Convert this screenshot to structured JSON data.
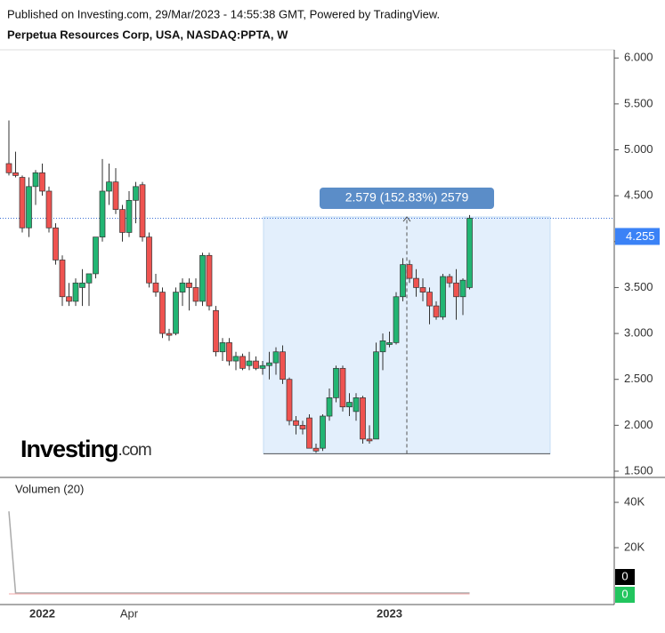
{
  "header": {
    "published": "Published on Investing.com, 29/Mar/2023 - 14:55:38 GMT, Powered by TradingView.",
    "symbol": "Perpetua Resources Corp, USA, NASDAQ:PPTA, W"
  },
  "logo": {
    "main": "Investing",
    "suffix": ".com"
  },
  "chart_data": [
    {
      "type": "candlestick",
      "categories": [
        null,
        null,
        null,
        null,
        null,
        "2022",
        null,
        null,
        null,
        null,
        null,
        null,
        null,
        null,
        null,
        null,
        null,
        null,
        "Apr",
        null,
        null,
        null,
        null,
        null,
        null,
        null,
        null,
        null,
        null,
        null,
        null,
        null,
        null,
        null,
        null,
        null,
        null,
        null,
        null,
        null,
        null,
        null,
        null,
        null,
        null,
        null,
        null,
        null,
        null,
        null,
        null,
        null,
        null,
        null,
        null,
        null,
        null,
        "2023",
        null,
        null,
        null,
        null,
        null,
        null,
        null,
        null,
        null,
        null,
        null,
        null
      ],
      "open": [
        4.85,
        4.75,
        4.7,
        4.15,
        4.6,
        4.75,
        4.55,
        4.15,
        3.8,
        3.4,
        3.35,
        3.5,
        3.55,
        3.65,
        4.05,
        4.55,
        4.65,
        4.35,
        4.1,
        4.45,
        4.62,
        4.05,
        3.55,
        3.45,
        3.0,
        3.0,
        3.45,
        3.55,
        3.5,
        3.35,
        3.85,
        3.25,
        2.8,
        2.9,
        2.7,
        2.75,
        2.65,
        2.7,
        2.62,
        2.65,
        2.68,
        2.8,
        2.5,
        2.05,
        2.0,
        2.08,
        1.75,
        1.75,
        2.1,
        2.3,
        2.62,
        2.2,
        2.15,
        2.3,
        1.85,
        1.85,
        2.8,
        2.88,
        2.9,
        3.4,
        3.75,
        3.6,
        3.5,
        3.45,
        3.3,
        3.18,
        3.62,
        3.55,
        3.4,
        3.5
      ],
      "high": [
        5.32,
        4.98,
        4.72,
        4.7,
        4.78,
        4.85,
        4.6,
        4.2,
        3.85,
        3.55,
        3.6,
        3.7,
        3.65,
        4.05,
        4.9,
        4.85,
        4.8,
        4.4,
        4.55,
        4.65,
        4.65,
        4.1,
        3.65,
        3.5,
        3.05,
        3.5,
        3.6,
        3.6,
        3.6,
        3.88,
        3.88,
        3.3,
        2.95,
        2.95,
        2.8,
        2.78,
        2.8,
        2.75,
        2.7,
        2.8,
        2.85,
        2.87,
        2.52,
        2.1,
        2.05,
        2.12,
        1.8,
        2.12,
        2.4,
        2.65,
        2.65,
        2.35,
        2.35,
        2.32,
        2.0,
        2.9,
        3.0,
        3.02,
        3.45,
        3.82,
        3.8,
        3.7,
        3.6,
        3.5,
        3.35,
        3.65,
        3.65,
        3.7,
        3.6,
        4.29
      ],
      "low": [
        4.72,
        4.7,
        4.1,
        4.05,
        4.4,
        4.5,
        4.1,
        3.75,
        3.3,
        3.3,
        3.3,
        3.3,
        3.3,
        3.6,
        4.0,
        4.4,
        4.3,
        4.0,
        4.05,
        4.2,
        4.0,
        3.5,
        3.4,
        2.95,
        2.92,
        2.98,
        3.3,
        3.25,
        3.3,
        3.3,
        3.25,
        2.75,
        2.7,
        2.65,
        2.6,
        2.6,
        2.6,
        2.6,
        2.55,
        2.5,
        2.55,
        2.45,
        2.0,
        1.9,
        1.9,
        1.75,
        1.7,
        1.72,
        2.05,
        2.25,
        2.15,
        2.1,
        2.05,
        1.8,
        1.8,
        1.85,
        2.6,
        2.85,
        2.88,
        3.35,
        3.55,
        3.4,
        3.35,
        3.1,
        3.15,
        3.15,
        3.5,
        3.15,
        3.2,
        3.48
      ],
      "close": [
        4.75,
        4.72,
        4.15,
        4.6,
        4.75,
        4.55,
        4.15,
        3.8,
        3.4,
        3.35,
        3.55,
        3.55,
        3.65,
        4.05,
        4.55,
        4.65,
        4.35,
        4.1,
        4.45,
        4.6,
        4.05,
        3.55,
        3.45,
        3.0,
        2.98,
        3.45,
        3.55,
        3.5,
        3.35,
        3.85,
        3.3,
        2.8,
        2.9,
        2.7,
        2.75,
        2.62,
        2.7,
        2.62,
        2.65,
        2.68,
        2.8,
        2.5,
        2.05,
        2.0,
        1.96,
        1.75,
        1.72,
        2.1,
        2.3,
        2.62,
        2.2,
        2.25,
        2.3,
        1.85,
        1.83,
        2.8,
        2.92,
        2.9,
        3.4,
        3.75,
        3.6,
        3.5,
        3.45,
        3.3,
        3.18,
        3.62,
        3.55,
        3.4,
        3.58,
        4.255
      ],
      "up_color": "#22b573",
      "down_color": "#ef5350",
      "ylim": [
        1.5,
        6.07
      ],
      "yticks": [
        {
          "value": 1.5,
          "label": "1.500"
        },
        {
          "value": 2,
          "label": "2.000"
        },
        {
          "value": 2.5,
          "label": "2.500"
        },
        {
          "value": 3,
          "label": "3.000"
        },
        {
          "value": 3.5,
          "label": "3.500"
        },
        {
          "value": 4,
          "label": "4.000"
        },
        {
          "value": 4.5,
          "label": "4.500"
        },
        {
          "value": 5,
          "label": "5.000"
        },
        {
          "value": 5.5,
          "label": "5.500"
        },
        {
          "value": 6,
          "label": "6.000"
        }
      ],
      "last_price": 4.255,
      "measure": {
        "from": 1.69,
        "to": 4.269,
        "label": "2.579 (152.83%) 2579"
      }
    },
    {
      "type": "line",
      "title": "Volumen (20)",
      "values": [
        36000,
        0,
        0,
        0,
        0,
        0,
        0,
        0,
        0,
        0,
        0,
        0,
        0,
        0,
        0,
        0,
        0,
        0,
        0,
        0,
        0,
        0,
        0,
        0,
        0,
        0,
        0,
        0,
        0,
        0,
        0,
        0,
        0,
        0,
        0,
        0,
        0,
        0,
        0,
        0,
        0,
        0,
        0,
        0,
        0,
        0,
        0,
        0,
        0,
        0,
        0,
        0,
        0,
        0,
        0,
        0,
        0,
        0,
        0,
        0,
        0,
        0,
        0,
        0,
        0,
        0,
        0,
        0,
        0,
        0
      ],
      "color": "#aaaaaa",
      "volume_last": 0,
      "ylim": [
        0,
        51000
      ],
      "yticks": [
        {
          "value": 20000,
          "label": "20K"
        },
        {
          "value": 40000,
          "label": "40K"
        }
      ]
    }
  ]
}
